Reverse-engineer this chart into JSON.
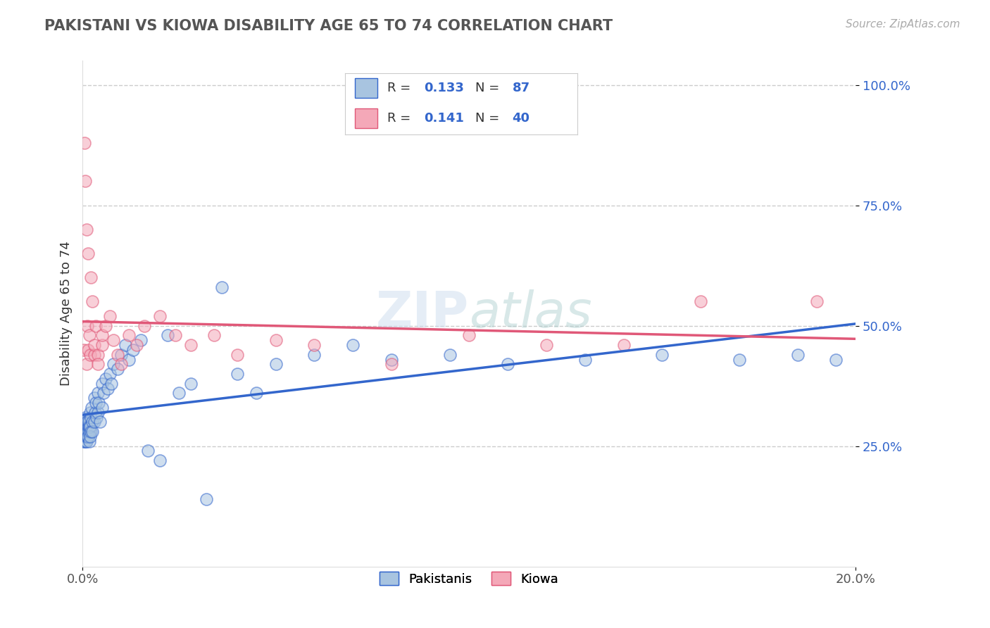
{
  "title": "PAKISTANI VS KIOWA DISABILITY AGE 65 TO 74 CORRELATION CHART",
  "source_text": "Source: ZipAtlas.com",
  "ylabel": "Disability Age 65 to 74",
  "xlim": [
    0.0,
    0.2
  ],
  "ylim": [
    0.0,
    1.05
  ],
  "ytick_vals": [
    0.25,
    0.5,
    0.75,
    1.0
  ],
  "ytick_labels": [
    "25.0%",
    "50.0%",
    "75.0%",
    "100.0%"
  ],
  "grid_color": "#cccccc",
  "background_color": "#ffffff",
  "legend_r_blue": "0.133",
  "legend_n_blue": "87",
  "legend_r_pink": "0.141",
  "legend_n_pink": "40",
  "pakistani_color": "#a8c4e0",
  "kiowa_color": "#f4a8b8",
  "trend_blue": "#3366cc",
  "trend_pink": "#e05878",
  "pakistani_x": [
    0.0002,
    0.0003,
    0.0003,
    0.0004,
    0.0004,
    0.0005,
    0.0005,
    0.0005,
    0.0006,
    0.0006,
    0.0006,
    0.0007,
    0.0007,
    0.0007,
    0.0008,
    0.0008,
    0.0009,
    0.0009,
    0.001,
    0.001,
    0.001,
    0.001,
    0.001,
    0.0012,
    0.0012,
    0.0013,
    0.0013,
    0.0014,
    0.0014,
    0.0015,
    0.0015,
    0.0016,
    0.0016,
    0.0017,
    0.0018,
    0.0018,
    0.002,
    0.002,
    0.002,
    0.0022,
    0.0022,
    0.0024,
    0.0025,
    0.0026,
    0.003,
    0.003,
    0.0032,
    0.0034,
    0.0036,
    0.004,
    0.004,
    0.0042,
    0.0045,
    0.005,
    0.005,
    0.0055,
    0.006,
    0.0065,
    0.007,
    0.0075,
    0.008,
    0.009,
    0.01,
    0.011,
    0.012,
    0.013,
    0.015,
    0.017,
    0.02,
    0.022,
    0.025,
    0.028,
    0.032,
    0.036,
    0.04,
    0.045,
    0.05,
    0.06,
    0.07,
    0.08,
    0.095,
    0.11,
    0.13,
    0.15,
    0.17,
    0.185,
    0.195
  ],
  "pakistani_y": [
    0.28,
    0.29,
    0.27,
    0.3,
    0.26,
    0.28,
    0.3,
    0.27,
    0.28,
    0.3,
    0.26,
    0.29,
    0.27,
    0.31,
    0.28,
    0.26,
    0.29,
    0.27,
    0.28,
    0.3,
    0.26,
    0.27,
    0.29,
    0.28,
    0.27,
    0.3,
    0.28,
    0.27,
    0.29,
    0.28,
    0.27,
    0.29,
    0.3,
    0.28,
    0.26,
    0.29,
    0.32,
    0.29,
    0.27,
    0.31,
    0.28,
    0.33,
    0.3,
    0.28,
    0.35,
    0.3,
    0.32,
    0.34,
    0.31,
    0.36,
    0.32,
    0.34,
    0.3,
    0.38,
    0.33,
    0.36,
    0.39,
    0.37,
    0.4,
    0.38,
    0.42,
    0.41,
    0.44,
    0.46,
    0.43,
    0.45,
    0.47,
    0.24,
    0.22,
    0.48,
    0.36,
    0.38,
    0.14,
    0.58,
    0.4,
    0.36,
    0.42,
    0.44,
    0.46,
    0.43,
    0.44,
    0.42,
    0.43,
    0.44,
    0.43,
    0.44,
    0.43
  ],
  "kiowa_x": [
    0.0003,
    0.0005,
    0.0007,
    0.001,
    0.001,
    0.0012,
    0.0014,
    0.0015,
    0.0018,
    0.002,
    0.0022,
    0.0025,
    0.003,
    0.003,
    0.0035,
    0.004,
    0.004,
    0.005,
    0.005,
    0.006,
    0.007,
    0.008,
    0.009,
    0.01,
    0.012,
    0.014,
    0.016,
    0.02,
    0.024,
    0.028,
    0.034,
    0.04,
    0.05,
    0.06,
    0.08,
    0.1,
    0.12,
    0.14,
    0.16,
    0.19
  ],
  "kiowa_y": [
    0.45,
    0.88,
    0.8,
    0.42,
    0.7,
    0.5,
    0.65,
    0.45,
    0.48,
    0.44,
    0.6,
    0.55,
    0.44,
    0.46,
    0.5,
    0.44,
    0.42,
    0.46,
    0.48,
    0.5,
    0.52,
    0.47,
    0.44,
    0.42,
    0.48,
    0.46,
    0.5,
    0.52,
    0.48,
    0.46,
    0.48,
    0.44,
    0.47,
    0.46,
    0.42,
    0.48,
    0.46,
    0.46,
    0.55,
    0.55
  ]
}
